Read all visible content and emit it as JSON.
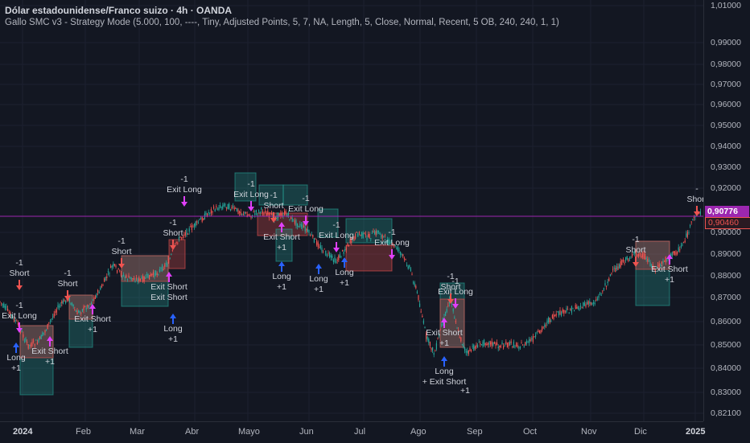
{
  "header": {
    "title": "Dólar estadounidense/Franco suizo · 4h · OANDA",
    "indicator": "Gallo SMC v3 - Strategy Mode (5.000, 100, ----, Tiny, Adjusted Points, 5, 7, NA, Length, 5, Close, Normal, Recent, 5 OB, 240, 240, 1, 1)"
  },
  "price_scale": {
    "ticks": [
      "1,01000",
      "0,99000",
      "0,98000",
      "0,97000",
      "0,96000",
      "0,95000",
      "0,94000",
      "0,93000",
      "0,92000",
      "0,90000",
      "0,89000",
      "0,88000",
      "0,87000",
      "0,86000",
      "0,85000",
      "0,84000",
      "0,83000",
      "0,82100"
    ],
    "current_price": "0,90776",
    "secondary_price": "0,90460"
  },
  "time_scale": {
    "labels": [
      "2024",
      "Feb",
      "Mar",
      "Abr",
      "Mayo",
      "Jun",
      "Jul",
      "Ago",
      "Sep",
      "Oct",
      "Nov",
      "Dic",
      "2025"
    ]
  },
  "colors": {
    "background": "#131722",
    "bull": "#26a69a",
    "bear": "#ef5350",
    "long_arrow": "#2962ff",
    "exit_marker": "#e040fb",
    "current_line": "#9c27b0"
  },
  "signals": [
    {
      "text": "-1",
      "t2": "Short"
    },
    {
      "text": "-1",
      "t2": "Exit Long"
    },
    {
      "text": "Long",
      "t2": "+1"
    },
    {
      "text": "Exit Short",
      "t2": "+1"
    },
    {
      "text": "-1",
      "t2": "Short"
    },
    {
      "text": "Exit Short",
      "t2": "+1"
    },
    {
      "text": "-1",
      "t2": "Short"
    },
    {
      "text": "Exit Short",
      "t2": "Exit Short"
    },
    {
      "text": "Long",
      "t2": "+1"
    },
    {
      "text": "-1",
      "t2": "Short"
    },
    {
      "text": "-1",
      "t2": "Exit Long"
    },
    {
      "text": "-1",
      "t2": "Exit Long"
    },
    {
      "text": "-1",
      "t2": "Short"
    },
    {
      "text": "-1",
      "t2": "Exit Long"
    },
    {
      "text": "Exit Short",
      "t2": "+1"
    },
    {
      "text": "Long",
      "t2": "+1"
    },
    {
      "text": "Long",
      "t2": "+1"
    },
    {
      "text": "-1",
      "t2": "Exit Long"
    },
    {
      "text": "Long",
      "t2": "+1"
    },
    {
      "text": "-1",
      "t2": "Exit Long"
    },
    {
      "text": "-1",
      "t2": "Exit Long"
    },
    {
      "text": "-1",
      "t2": "Short"
    },
    {
      "text": "Exit Short",
      "t2": "+1"
    },
    {
      "text": "Long",
      "t2": "+ Exit Short"
    },
    {
      "text": "+1",
      "t2": ""
    },
    {
      "text": "-1",
      "t2": "Short"
    },
    {
      "text": "Exit Short",
      "t2": "+1"
    },
    {
      "text": "-",
      "t2": "Short"
    }
  ]
}
